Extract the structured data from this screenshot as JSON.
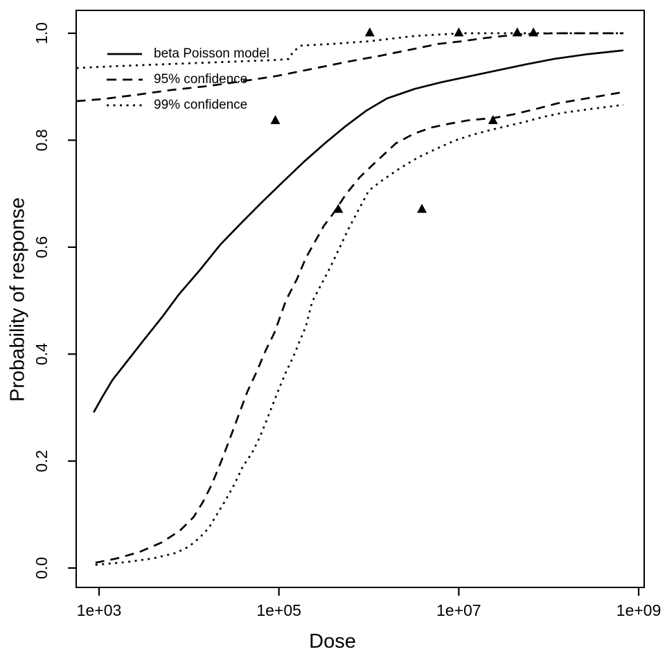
{
  "chart_data": {
    "type": "line",
    "title": "",
    "xlabel": "Dose",
    "ylabel": "Probability of response",
    "x_scale": "log10",
    "xlim_log10": [
      3,
      9
    ],
    "ylim": [
      0,
      1
    ],
    "grid": false,
    "background_color": "#ffffff",
    "line_color": "#000000",
    "x_ticks": [
      {
        "log10": 3,
        "label": "1e+03"
      },
      {
        "log10": 5,
        "label": "1e+05"
      },
      {
        "log10": 7,
        "label": "1e+07"
      },
      {
        "log10": 9,
        "label": "1e+09"
      }
    ],
    "y_ticks": [
      {
        "value": 0.0,
        "label": "0.0"
      },
      {
        "value": 0.2,
        "label": "0.2"
      },
      {
        "value": 0.4,
        "label": "0.4"
      },
      {
        "value": 0.6,
        "label": "0.6"
      },
      {
        "value": 0.8,
        "label": "0.8"
      },
      {
        "value": 1.0,
        "label": "1.0"
      }
    ],
    "legend": [
      {
        "label": "beta Poisson model",
        "line_style": "solid"
      },
      {
        "label": "95% confidence",
        "line_style": "dashed"
      },
      {
        "label": "99% confidence",
        "line_style": "dotted"
      }
    ],
    "legend_position": "top-left-inside",
    "series": [
      {
        "name": "beta Poisson model",
        "line_style": "solid",
        "points": [
          [
            2.94,
            0.291
          ],
          [
            3.04,
            0.321
          ],
          [
            3.15,
            0.352
          ],
          [
            3.31,
            0.386
          ],
          [
            3.5,
            0.427
          ],
          [
            3.7,
            0.469
          ],
          [
            3.89,
            0.512
          ],
          [
            4.12,
            0.557
          ],
          [
            4.35,
            0.605
          ],
          [
            4.58,
            0.645
          ],
          [
            4.81,
            0.684
          ],
          [
            5.05,
            0.723
          ],
          [
            5.28,
            0.76
          ],
          [
            5.51,
            0.794
          ],
          [
            5.74,
            0.826
          ],
          [
            5.97,
            0.855
          ],
          [
            6.2,
            0.878
          ],
          [
            6.51,
            0.896
          ],
          [
            6.82,
            0.909
          ],
          [
            7.13,
            0.92
          ],
          [
            7.44,
            0.931
          ],
          [
            7.75,
            0.942
          ],
          [
            8.06,
            0.952
          ],
          [
            8.44,
            0.961
          ],
          [
            8.83,
            0.968
          ]
        ]
      },
      {
        "name": "95% confidence upper",
        "line_style": "dashed",
        "points": [
          [
            2.75,
            0.873
          ],
          [
            3.04,
            0.877
          ],
          [
            3.42,
            0.885
          ],
          [
            3.81,
            0.894
          ],
          [
            4.2,
            0.901
          ],
          [
            4.58,
            0.91
          ],
          [
            4.97,
            0.92
          ],
          [
            5.36,
            0.933
          ],
          [
            5.74,
            0.946
          ],
          [
            6.13,
            0.958
          ],
          [
            6.51,
            0.971
          ],
          [
            6.77,
            0.98
          ],
          [
            7.03,
            0.985
          ],
          [
            7.29,
            0.991
          ],
          [
            7.67,
            0.998
          ],
          [
            8.06,
            1.0
          ],
          [
            8.83,
            1.0
          ]
        ]
      },
      {
        "name": "95% confidence lower",
        "line_style": "dashed",
        "points": [
          [
            2.96,
            0.01
          ],
          [
            3.2,
            0.018
          ],
          [
            3.45,
            0.03
          ],
          [
            3.7,
            0.048
          ],
          [
            3.9,
            0.07
          ],
          [
            4.05,
            0.095
          ],
          [
            4.15,
            0.122
          ],
          [
            4.25,
            0.155
          ],
          [
            4.35,
            0.196
          ],
          [
            4.45,
            0.24
          ],
          [
            4.55,
            0.285
          ],
          [
            4.65,
            0.33
          ],
          [
            4.75,
            0.366
          ],
          [
            4.85,
            0.406
          ],
          [
            4.95,
            0.44
          ],
          [
            5.08,
            0.501
          ],
          [
            5.2,
            0.54
          ],
          [
            5.3,
            0.58
          ],
          [
            5.4,
            0.61
          ],
          [
            5.5,
            0.64
          ],
          [
            5.6,
            0.662
          ],
          [
            5.75,
            0.7
          ],
          [
            5.9,
            0.731
          ],
          [
            6.05,
            0.755
          ],
          [
            6.3,
            0.794
          ],
          [
            6.5,
            0.812
          ],
          [
            6.7,
            0.824
          ],
          [
            6.9,
            0.831
          ],
          [
            7.1,
            0.837
          ],
          [
            7.4,
            0.842
          ],
          [
            7.6,
            0.848
          ],
          [
            7.85,
            0.858
          ],
          [
            8.1,
            0.869
          ],
          [
            8.45,
            0.879
          ],
          [
            8.83,
            0.89
          ]
        ]
      },
      {
        "name": "99% confidence upper",
        "line_style": "dotted",
        "points": [
          [
            2.75,
            0.935
          ],
          [
            3.12,
            0.938
          ],
          [
            3.58,
            0.941
          ],
          [
            4.04,
            0.944
          ],
          [
            4.51,
            0.947
          ],
          [
            4.97,
            0.95
          ],
          [
            5.11,
            0.952
          ],
          [
            5.16,
            0.966
          ],
          [
            5.25,
            0.977
          ],
          [
            5.59,
            0.98
          ],
          [
            6.0,
            0.985
          ],
          [
            6.51,
            0.995
          ],
          [
            7.03,
            1.0
          ],
          [
            7.67,
            1.0
          ],
          [
            8.83,
            1.0
          ]
        ]
      },
      {
        "name": "99% confidence lower",
        "line_style": "dotted",
        "points": [
          [
            2.96,
            0.006
          ],
          [
            3.3,
            0.011
          ],
          [
            3.6,
            0.018
          ],
          [
            3.85,
            0.028
          ],
          [
            4.0,
            0.04
          ],
          [
            4.12,
            0.057
          ],
          [
            4.22,
            0.075
          ],
          [
            4.31,
            0.1
          ],
          [
            4.4,
            0.125
          ],
          [
            4.5,
            0.155
          ],
          [
            4.6,
            0.19
          ],
          [
            4.7,
            0.215
          ],
          [
            4.78,
            0.242
          ],
          [
            4.86,
            0.275
          ],
          [
            4.93,
            0.305
          ],
          [
            5.0,
            0.335
          ],
          [
            5.08,
            0.367
          ],
          [
            5.16,
            0.395
          ],
          [
            5.23,
            0.424
          ],
          [
            5.3,
            0.452
          ],
          [
            5.37,
            0.498
          ],
          [
            5.47,
            0.53
          ],
          [
            5.57,
            0.562
          ],
          [
            5.67,
            0.597
          ],
          [
            5.77,
            0.633
          ],
          [
            5.88,
            0.668
          ],
          [
            6.0,
            0.706
          ],
          [
            6.15,
            0.725
          ],
          [
            6.35,
            0.748
          ],
          [
            6.55,
            0.768
          ],
          [
            6.75,
            0.784
          ],
          [
            6.95,
            0.799
          ],
          [
            7.15,
            0.81
          ],
          [
            7.35,
            0.819
          ],
          [
            7.55,
            0.827
          ],
          [
            7.75,
            0.835
          ],
          [
            7.95,
            0.844
          ],
          [
            8.15,
            0.851
          ],
          [
            8.45,
            0.858
          ],
          [
            8.83,
            0.866
          ]
        ]
      }
    ],
    "observed_points": {
      "marker": "filled-triangle",
      "data": [
        [
          4.96,
          0.836
        ],
        [
          5.66,
          0.67
        ],
        [
          6.01,
          1.0
        ],
        [
          6.59,
          0.67
        ],
        [
          7.0,
          1.0
        ],
        [
          7.38,
          0.836
        ],
        [
          7.65,
          1.0
        ],
        [
          7.83,
          1.0
        ]
      ]
    }
  }
}
